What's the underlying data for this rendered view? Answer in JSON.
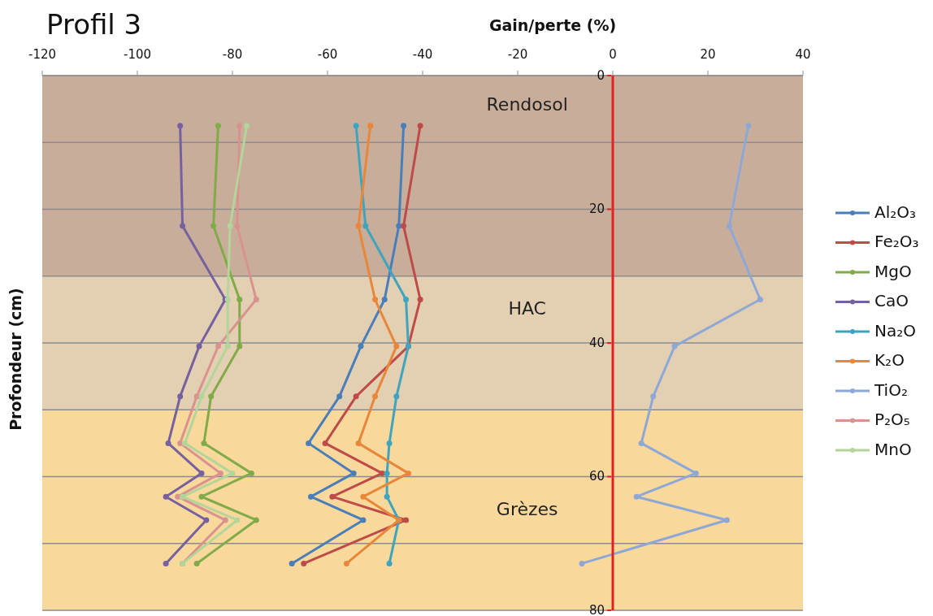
{
  "chart_data": {
    "type": "line",
    "title": "Profil 3",
    "xlabel": "Gain/perte (%)",
    "ylabel": "Profondeur (cm)",
    "xlim": [
      -120,
      40
    ],
    "xticks": [
      -120,
      -100,
      -80,
      -60,
      -40,
      -20,
      0,
      20,
      40
    ],
    "ylim": [
      80,
      0
    ],
    "yticks": [
      0,
      {
        "value": 10,
        "label": null
      },
      20,
      {
        "value": 30,
        "label": null
      },
      40,
      {
        "value": 50,
        "label": null
      },
      60,
      {
        "value": 70,
        "label": null
      },
      80
    ],
    "grid": "y",
    "legend": "right",
    "marker": "circle",
    "line_style": "solid",
    "bands": [
      {
        "axis": "y",
        "from": 0,
        "to": 30,
        "label": "Rendosol",
        "color": "#c8ad9a"
      },
      {
        "axis": "y",
        "from": 30,
        "to": 50,
        "label": "HAC",
        "color": "#e3cfb2"
      },
      {
        "axis": "y",
        "from": 50,
        "to": 80,
        "label": "Grèzes",
        "color": "#f9d89c"
      }
    ],
    "series": [
      {
        "name": "Al₂O₃",
        "color": "#4a7ebb",
        "x": [
          -44,
          -45,
          -48,
          -53,
          -57.5,
          -64,
          -54.5,
          -63.5,
          -52.5,
          -67.5
        ],
        "values": [
          7.5,
          22.5,
          33.5,
          40.5,
          48,
          55,
          59.5,
          63,
          66.5,
          73
        ]
      },
      {
        "name": "Fe₂O₃",
        "color": "#be4b48",
        "x": [
          -40.5,
          -44,
          -40.5,
          -43,
          -54,
          -60.5,
          -48.5,
          -59,
          -43.5,
          -65
        ],
        "values": [
          7.5,
          22.5,
          33.5,
          40.5,
          48,
          55,
          59.5,
          63,
          66.5,
          73
        ]
      },
      {
        "name": "MgO",
        "color": "#80ab48",
        "x": [
          -83,
          -84,
          -78.5,
          -78.5,
          -84.5,
          -86,
          -76,
          -86.5,
          -75,
          -87.5
        ],
        "values": [
          7.5,
          22.5,
          33.5,
          40.5,
          48,
          55,
          59.5,
          63,
          66.5,
          73
        ]
      },
      {
        "name": "CaO",
        "color": "#7660a0",
        "x": [
          -91,
          -90.5,
          -81.5,
          -87,
          -91,
          -93.5,
          -86.5,
          -94,
          -85.5,
          -94
        ],
        "values": [
          7.5,
          22.5,
          33.5,
          40.5,
          48,
          55,
          59.5,
          63,
          66.5,
          73
        ]
      },
      {
        "name": "Na₂O",
        "color": "#3fa4bd",
        "x": [
          -54,
          -52,
          -43.5,
          -43,
          -45.5,
          -47,
          -47.5,
          -47.5,
          -45,
          -47
        ],
        "values": [
          7.5,
          22.5,
          33.5,
          40.5,
          48,
          55,
          59.5,
          63,
          66.5,
          73
        ]
      },
      {
        "name": "K₂O",
        "color": "#e8873a",
        "x": [
          -51,
          -53.5,
          -50,
          -45.5,
          -50,
          -53.5,
          -43,
          -52.5,
          -45,
          -56
        ],
        "values": [
          7.5,
          22.5,
          33.5,
          40.5,
          48,
          55,
          59.5,
          63,
          66.5,
          73
        ]
      },
      {
        "name": "TiO₂",
        "color": "#8ea8d6",
        "x": [
          28.5,
          24.5,
          31,
          13,
          8.5,
          6,
          17.5,
          5,
          24,
          -6.5
        ],
        "values": [
          7.5,
          22.5,
          33.5,
          40.5,
          48,
          55,
          59.5,
          63,
          66.5,
          73
        ]
      },
      {
        "name": "P₂O₅",
        "color": "#d89290",
        "x": [
          -78.5,
          -79,
          -75,
          -83,
          -87.5,
          -91,
          -82.5,
          -91.5,
          -81.5,
          -90.5
        ],
        "values": [
          7.5,
          22.5,
          33.5,
          40.5,
          48,
          55,
          59.5,
          63,
          66.5,
          73
        ]
      },
      {
        "name": "MnO",
        "color": "#b3d59a",
        "x": [
          -77,
          -80.5,
          -81,
          -81,
          -86.5,
          -90,
          -80,
          -90.5,
          -79,
          -90.5
        ],
        "values": [
          7.5,
          22.5,
          33.5,
          40.5,
          48,
          55,
          59.5,
          63,
          66.5,
          73
        ]
      }
    ]
  }
}
